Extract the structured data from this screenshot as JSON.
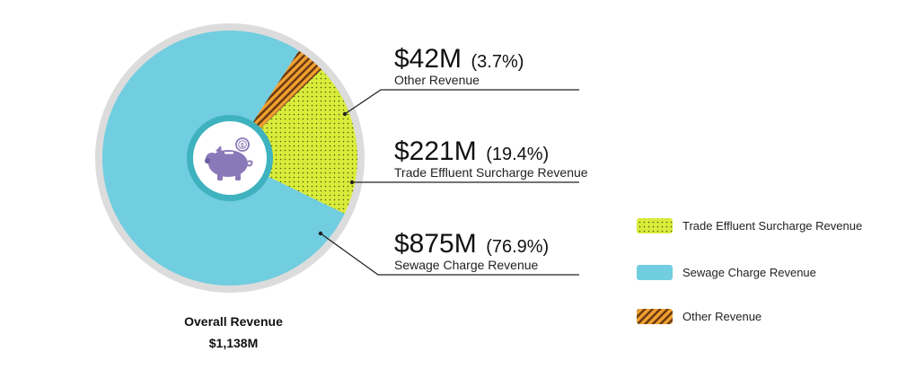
{
  "chart_data": {
    "type": "pie",
    "total": {
      "label": "Overall Revenue",
      "value_text": "$1,138M"
    },
    "slices": [
      {
        "name": "Other Revenue",
        "value": 42,
        "amount_text": "$42M",
        "percent": 3.7,
        "percent_text": "(3.7%)",
        "color": "#f0a030",
        "pattern": "stripes"
      },
      {
        "name": "Trade Effluent Surcharge Revenue",
        "value": 221,
        "amount_text": "$221M",
        "percent": 19.4,
        "percent_text": "(19.4%)",
        "color": "#d9ec3a",
        "pattern": "dots"
      },
      {
        "name": "Sewage Charge Revenue",
        "value": 875,
        "amount_text": "$875M",
        "percent": 76.9,
        "percent_text": "(76.9%)",
        "color": "#71cde0",
        "pattern": "solid"
      }
    ],
    "legend": [
      {
        "name": "Trade Effluent Surcharge Revenue",
        "pattern": "dots",
        "color": "#d9ec3a"
      },
      {
        "name": "Sewage Charge Revenue",
        "pattern": "solid",
        "color": "#71cde0"
      },
      {
        "name": "Other Revenue",
        "pattern": "stripes",
        "color": "#f0a030"
      }
    ],
    "legend_position": "right",
    "center_icon": "piggy-bank-icon",
    "ring_color": "#dcdcdc"
  }
}
